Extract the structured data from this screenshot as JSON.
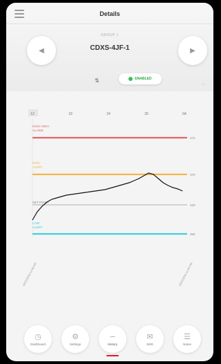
{
  "header": {
    "title": "Details",
    "group_label": "GROUP 1",
    "device_name": "CDXS-4JF-1",
    "prev_icon": "chevron-left-icon",
    "next_icon": "chevron-right-icon",
    "signal_icon": "signal-icon",
    "status": "ENABLED"
  },
  "chart_data": {
    "type": "line",
    "x_tick_labels": [
      "12",
      "18",
      "24",
      "30",
      "6A"
    ],
    "annotations": {
      "very_high_alarm": {
        "label": "HIGH HIGH\nALARM",
        "value": "473",
        "color": "#e06666"
      },
      "high_alert": {
        "label": "HIGH\nALERT",
        "value": "370",
        "color": "#f0b84e"
      },
      "set_point": {
        "label": "SET POINT",
        "value": "420",
        "color": "#b0b0b0"
      },
      "low_alert": {
        "label": "LOW\nALERT",
        "value": "360",
        "color": "#3fd0e0"
      }
    },
    "start_label": "10/23/2016 12:00 AM",
    "end_label": "10/23/2016 11:59 PM",
    "series": [
      {
        "color": "#111111",
        "values": [
          20,
          32,
          40,
          46,
          50,
          52,
          54,
          56,
          57,
          58,
          59,
          60,
          61,
          62,
          63,
          64,
          66,
          68,
          70,
          72,
          74,
          77,
          80,
          84,
          88,
          86,
          80,
          74,
          70,
          67,
          65,
          62
        ]
      }
    ]
  },
  "nav": {
    "items": [
      {
        "label": "Dashboard",
        "icon": "clock-icon"
      },
      {
        "label": "Settings",
        "icon": "gear-icon"
      },
      {
        "label": "History",
        "icon": "chart-icon"
      },
      {
        "label": "SMS",
        "icon": "message-icon"
      },
      {
        "label": "Notes",
        "icon": "note-icon"
      }
    ],
    "active": 2
  }
}
